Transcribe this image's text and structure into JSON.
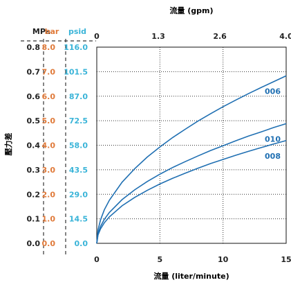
{
  "chart_data": {
    "type": "line",
    "title": "",
    "x_bottom": {
      "label": "流量 (liter/minute)",
      "ticks": [
        0,
        5,
        10,
        15
      ],
      "tick_labels": [
        "0",
        "5",
        "10",
        "15"
      ],
      "range": [
        0,
        15
      ]
    },
    "x_top": {
      "label": "流量 (gpm)",
      "ticks": [
        0,
        1.3,
        2.6,
        4.0
      ],
      "tick_labels": [
        "0",
        "1.3",
        "2.6",
        "4.0"
      ],
      "range": [
        0,
        4.0
      ]
    },
    "y_left": {
      "label": "壓力差",
      "range": [
        0,
        0.8
      ],
      "units": [
        {
          "name": "MPa",
          "color": "#222222",
          "ticks": [
            "0.0",
            "0.1",
            "0.2",
            "0.3",
            "0.4",
            "0.5",
            "0.6",
            "0.7",
            "0.8"
          ]
        },
        {
          "name": "bar",
          "color": "#e07a3a",
          "ticks": [
            "0.0",
            "1.0",
            "2.0",
            "3.0",
            "4.0",
            "5.0",
            "6.0",
            "7.0",
            "8.0"
          ]
        },
        {
          "name": "psid",
          "color": "#3ab4d8",
          "ticks": [
            "0.0",
            "14.5",
            "29.0",
            "43.5",
            "58.0",
            "72.5",
            "87.0",
            "101.5",
            "116.0"
          ]
        }
      ]
    },
    "grid": true,
    "series_color": "#1f6fb2",
    "series": [
      {
        "name": "006",
        "x": [
          0,
          0.1,
          0.3,
          0.6,
          1,
          2,
          3,
          4,
          5,
          6,
          7,
          8,
          9,
          10,
          11,
          12,
          13,
          14,
          15
        ],
        "values": [
          0,
          0.055,
          0.096,
          0.137,
          0.176,
          0.249,
          0.304,
          0.352,
          0.393,
          0.431,
          0.465,
          0.498,
          0.528,
          0.557,
          0.584,
          0.61,
          0.635,
          0.659,
          0.683
        ]
      },
      {
        "name": "010",
        "x": [
          0,
          0.1,
          0.3,
          0.6,
          1,
          2,
          3,
          4,
          5,
          6,
          7,
          8,
          9,
          10,
          11,
          12,
          13,
          14,
          15
        ],
        "values": [
          0,
          0.04,
          0.069,
          0.098,
          0.126,
          0.178,
          0.218,
          0.252,
          0.282,
          0.309,
          0.333,
          0.356,
          0.378,
          0.398,
          0.418,
          0.437,
          0.454,
          0.472,
          0.488
        ]
      },
      {
        "name": "008",
        "x": [
          0,
          0.1,
          0.3,
          0.6,
          1,
          2,
          3,
          4,
          5,
          6,
          7,
          8,
          9,
          10,
          11,
          12,
          13,
          14,
          15
        ],
        "values": [
          0,
          0.034,
          0.059,
          0.084,
          0.108,
          0.153,
          0.187,
          0.216,
          0.242,
          0.265,
          0.286,
          0.306,
          0.325,
          0.342,
          0.359,
          0.375,
          0.39,
          0.405,
          0.419
        ]
      }
    ]
  }
}
